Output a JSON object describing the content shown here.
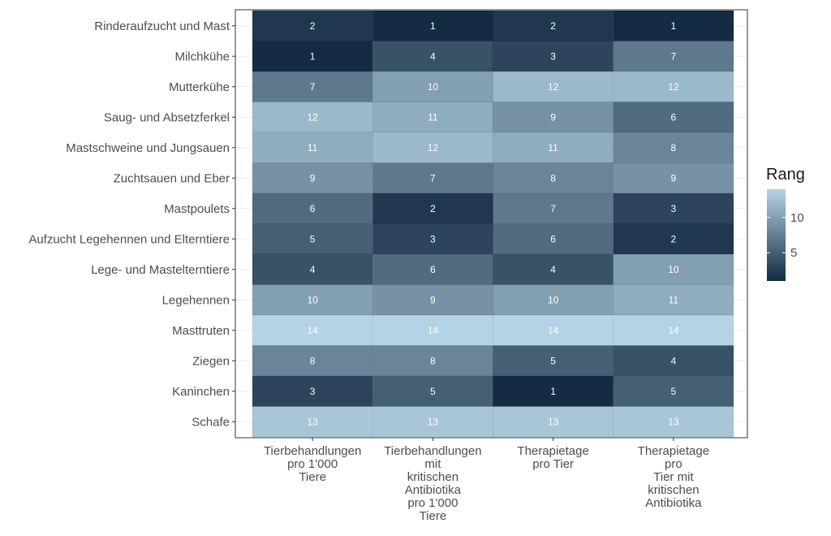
{
  "chart_data": {
    "type": "heatmap",
    "rows": [
      "Rinderaufzucht und Mast",
      "Milchkühe",
      "Mutterkühe",
      "Saug- und Absetzferkel",
      "Mastschweine und Jungsauen",
      "Zuchtsauen und Eber",
      "Mastpoulets",
      "Aufzucht Legehennen und Elterntiere",
      "Lege- und Mastelterntiere",
      "Legehennen",
      "Masttruten",
      "Ziegen",
      "Kaninchen",
      "Schafe"
    ],
    "columns": [
      [
        "Tierbehandlungen",
        "pro 1'000",
        "Tiere"
      ],
      [
        "Tierbehandlungen",
        "mit",
        "kritischen",
        "Antibiotika",
        "pro 1'000",
        "Tiere"
      ],
      [
        "Therapietage",
        "pro Tier"
      ],
      [
        "Therapietage",
        "pro",
        "Tier mit",
        "kritischen",
        "Antibiotika"
      ]
    ],
    "values": [
      [
        2,
        1,
        2,
        1
      ],
      [
        1,
        4,
        3,
        7
      ],
      [
        7,
        10,
        12,
        12
      ],
      [
        12,
        11,
        9,
        6
      ],
      [
        11,
        12,
        11,
        8
      ],
      [
        9,
        7,
        8,
        9
      ],
      [
        6,
        2,
        7,
        3
      ],
      [
        5,
        3,
        6,
        2
      ],
      [
        4,
        6,
        4,
        10
      ],
      [
        10,
        9,
        10,
        11
      ],
      [
        14,
        14,
        14,
        14
      ],
      [
        8,
        8,
        5,
        4
      ],
      [
        3,
        5,
        1,
        5
      ],
      [
        13,
        13,
        13,
        13
      ]
    ],
    "legend": {
      "title": "Rang",
      "ticks": [
        5,
        10
      ],
      "range": [
        1,
        14
      ],
      "low_color": "#132b43",
      "high_color": "#b5d3e4"
    },
    "grid": true
  }
}
